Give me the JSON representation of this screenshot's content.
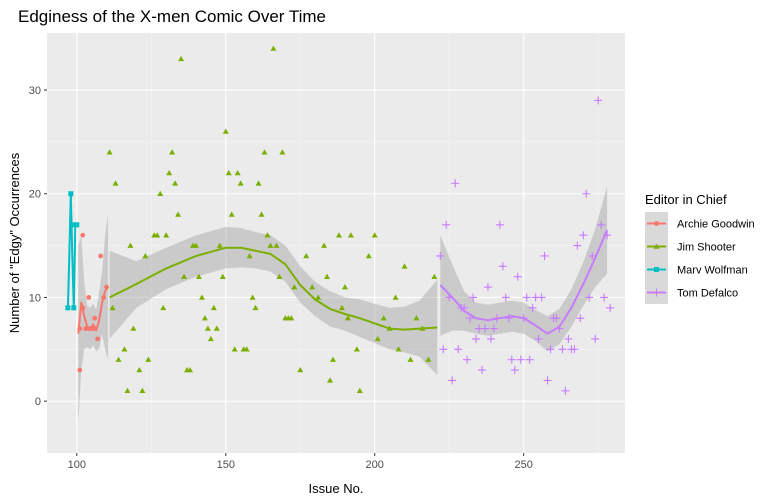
{
  "chart_data": {
    "type": "scatter",
    "title": "Edginess of the X-men Comic Over Time",
    "xlabel": "Issue No.",
    "ylabel": "Number of \"Edgy\" Occurrences",
    "xlim": [
      90,
      284
    ],
    "ylim": [
      -5,
      35.5
    ],
    "x_ticks": [
      100,
      150,
      200,
      250
    ],
    "y_ticks": [
      0,
      10,
      20,
      30
    ],
    "grid": true,
    "legend": {
      "title": "Editor in Chief",
      "position": "right"
    },
    "series": [
      {
        "name": "Archie Goodwin",
        "color": "#F8766D",
        "marker": "circle",
        "points": [
          [
            101,
            3
          ],
          [
            101,
            7
          ],
          [
            102,
            16
          ],
          [
            102,
            9
          ],
          [
            103,
            7
          ],
          [
            104,
            7
          ],
          [
            104,
            10
          ],
          [
            105,
            7
          ],
          [
            106,
            7
          ],
          [
            106,
            8
          ],
          [
            107,
            6
          ],
          [
            108,
            14
          ],
          [
            109,
            10
          ],
          [
            110,
            11
          ]
        ],
        "smooth": [
          [
            100.5,
            6.5
          ],
          [
            101.5,
            9.5
          ],
          [
            102.5,
            8.2
          ],
          [
            103.5,
            7.2
          ],
          [
            104.5,
            7.0
          ],
          [
            105.5,
            7.4
          ],
          [
            106.5,
            6.8
          ],
          [
            107.5,
            7.8
          ],
          [
            108.5,
            9.5
          ],
          [
            109.5,
            10.6
          ],
          [
            110.5,
            11.0
          ]
        ],
        "band": [
          [
            100.5,
            -2,
            15
          ],
          [
            101.5,
            3,
            16
          ],
          [
            102.5,
            5,
            11.5
          ],
          [
            103.5,
            5.2,
            9.2
          ],
          [
            104.5,
            5,
            9
          ],
          [
            105.5,
            5.4,
            9.4
          ],
          [
            106.5,
            4.8,
            8.8
          ],
          [
            107.5,
            5,
            10.5
          ],
          [
            108.5,
            6.5,
            12.5
          ],
          [
            109.5,
            5,
            16
          ],
          [
            110.5,
            4,
            18
          ]
        ]
      },
      {
        "name": "Jim Shooter",
        "color": "#7CAE00",
        "marker": "triangle",
        "points": [
          [
            111,
            24
          ],
          [
            113,
            21
          ],
          [
            112,
            9
          ],
          [
            114,
            4
          ],
          [
            116,
            5
          ],
          [
            117,
            1
          ],
          [
            118,
            15
          ],
          [
            119,
            7
          ],
          [
            121,
            3
          ],
          [
            122,
            1
          ],
          [
            123,
            14
          ],
          [
            124,
            4
          ],
          [
            126,
            16
          ],
          [
            127,
            16
          ],
          [
            128,
            20
          ],
          [
            129,
            9
          ],
          [
            130,
            16
          ],
          [
            131,
            22
          ],
          [
            132,
            24
          ],
          [
            133,
            21
          ],
          [
            134,
            18
          ],
          [
            135,
            33
          ],
          [
            136,
            12
          ],
          [
            137,
            3
          ],
          [
            138,
            3
          ],
          [
            139,
            15
          ],
          [
            140,
            15
          ],
          [
            141,
            12
          ],
          [
            142,
            10
          ],
          [
            143,
            8
          ],
          [
            144,
            7
          ],
          [
            145,
            6
          ],
          [
            146,
            9
          ],
          [
            147,
            7
          ],
          [
            148,
            15
          ],
          [
            149,
            12
          ],
          [
            150,
            26
          ],
          [
            151,
            22
          ],
          [
            152,
            18
          ],
          [
            153,
            5
          ],
          [
            154,
            22
          ],
          [
            155,
            21
          ],
          [
            156,
            5
          ],
          [
            157,
            5
          ],
          [
            158,
            14
          ],
          [
            159,
            10
          ],
          [
            160,
            9
          ],
          [
            161,
            21
          ],
          [
            162,
            18
          ],
          [
            163,
            24
          ],
          [
            164,
            16
          ],
          [
            165,
            15
          ],
          [
            166,
            34
          ],
          [
            167,
            15
          ],
          [
            168,
            12
          ],
          [
            169,
            24
          ],
          [
            170,
            8
          ],
          [
            171,
            8
          ],
          [
            172,
            8
          ],
          [
            173,
            11
          ],
          [
            175,
            3
          ],
          [
            177,
            14
          ],
          [
            179,
            11
          ],
          [
            181,
            10
          ],
          [
            183,
            15
          ],
          [
            184,
            12
          ],
          [
            185,
            2
          ],
          [
            186,
            4
          ],
          [
            188,
            16
          ],
          [
            189,
            9
          ],
          [
            190,
            11
          ],
          [
            191,
            8
          ],
          [
            192,
            16
          ],
          [
            194,
            5
          ],
          [
            195,
            1
          ],
          [
            198,
            14
          ],
          [
            200,
            16
          ],
          [
            201,
            6
          ],
          [
            203,
            8
          ],
          [
            205,
            7
          ],
          [
            207,
            10
          ],
          [
            208,
            5
          ],
          [
            210,
            13
          ],
          [
            212,
            4
          ],
          [
            214,
            8
          ],
          [
            216,
            7
          ],
          [
            218,
            4
          ],
          [
            220,
            12
          ]
        ],
        "smooth": [
          [
            111,
            10.0
          ],
          [
            120,
            11.3
          ],
          [
            130,
            12.8
          ],
          [
            140,
            14.0
          ],
          [
            150,
            14.8
          ],
          [
            155,
            14.8
          ],
          [
            160,
            14.5
          ],
          [
            165,
            14.2
          ],
          [
            170,
            13.2
          ],
          [
            175,
            11.2
          ],
          [
            180,
            9.8
          ],
          [
            185,
            8.9
          ],
          [
            190,
            8.4
          ],
          [
            195,
            8.0
          ],
          [
            200,
            7.5
          ],
          [
            205,
            7.0
          ],
          [
            210,
            6.9
          ],
          [
            215,
            7.0
          ],
          [
            221,
            7.1
          ]
        ],
        "band": [
          [
            111,
            6.0,
            14.5
          ],
          [
            120,
            9.0,
            13.5
          ],
          [
            130,
            10.8,
            14.8
          ],
          [
            140,
            12.0,
            16.0
          ],
          [
            150,
            12.8,
            16.8
          ],
          [
            155,
            12.9,
            16.7
          ],
          [
            160,
            12.8,
            16.3
          ],
          [
            165,
            12.5,
            16.0
          ],
          [
            170,
            11.5,
            15.0
          ],
          [
            175,
            9.5,
            13.0
          ],
          [
            180,
            8.2,
            11.5
          ],
          [
            185,
            7.2,
            10.6
          ],
          [
            190,
            6.8,
            10.0
          ],
          [
            195,
            6.2,
            9.8
          ],
          [
            200,
            5.6,
            9.4
          ],
          [
            205,
            5.0,
            9.0
          ],
          [
            210,
            4.7,
            9.1
          ],
          [
            215,
            4.3,
            9.7
          ],
          [
            221,
            2.5,
            11.7
          ]
        ]
      },
      {
        "name": "Marv Wolfman",
        "color": "#00BFC4",
        "marker": "square",
        "points": [
          [
            97,
            9
          ],
          [
            98,
            20
          ],
          [
            99,
            9
          ],
          [
            99,
            17
          ],
          [
            100,
            17
          ]
        ],
        "smooth": [
          [
            97,
            9
          ],
          [
            97.5,
            14
          ],
          [
            98,
            20
          ],
          [
            98.5,
            14
          ],
          [
            99,
            9
          ],
          [
            99.5,
            17
          ],
          [
            100,
            17
          ]
        ],
        "band": []
      },
      {
        "name": "Tom Defalco",
        "color": "#C77CFF",
        "marker": "plus",
        "points": [
          [
            222,
            14
          ],
          [
            223,
            5
          ],
          [
            224,
            17
          ],
          [
            225,
            10
          ],
          [
            226,
            2
          ],
          [
            227,
            21
          ],
          [
            228,
            5
          ],
          [
            229,
            9
          ],
          [
            230,
            9
          ],
          [
            231,
            4
          ],
          [
            232,
            8
          ],
          [
            233,
            10
          ],
          [
            234,
            6
          ],
          [
            235,
            7
          ],
          [
            236,
            3
          ],
          [
            237,
            7
          ],
          [
            238,
            11
          ],
          [
            239,
            6
          ],
          [
            240,
            7
          ],
          [
            241,
            8
          ],
          [
            242,
            17
          ],
          [
            243,
            13
          ],
          [
            244,
            10
          ],
          [
            245,
            8
          ],
          [
            246,
            4
          ],
          [
            247,
            3
          ],
          [
            248,
            12
          ],
          [
            249,
            4
          ],
          [
            250,
            8
          ],
          [
            251,
            10
          ],
          [
            252,
            4
          ],
          [
            253,
            9
          ],
          [
            254,
            10
          ],
          [
            255,
            6
          ],
          [
            256,
            10
          ],
          [
            257,
            14
          ],
          [
            258,
            2
          ],
          [
            259,
            5
          ],
          [
            260,
            8
          ],
          [
            261,
            8
          ],
          [
            262,
            7
          ],
          [
            263,
            5
          ],
          [
            264,
            1
          ],
          [
            265,
            6
          ],
          [
            266,
            5
          ],
          [
            267,
            5
          ],
          [
            268,
            15
          ],
          [
            269,
            8
          ],
          [
            270,
            16
          ],
          [
            271,
            20
          ],
          [
            272,
            10
          ],
          [
            273,
            14
          ],
          [
            274,
            6
          ],
          [
            275,
            29
          ],
          [
            276,
            17
          ],
          [
            277,
            10
          ],
          [
            278,
            16
          ],
          [
            279,
            9
          ]
        ],
        "smooth": [
          [
            222,
            11.2
          ],
          [
            226,
            10.0
          ],
          [
            230,
            8.7
          ],
          [
            234,
            8.0
          ],
          [
            238,
            7.8
          ],
          [
            242,
            8.0
          ],
          [
            246,
            8.2
          ],
          [
            250,
            8.0
          ],
          [
            254,
            7.3
          ],
          [
            258,
            6.5
          ],
          [
            262,
            7.2
          ],
          [
            266,
            9.0
          ],
          [
            270,
            11.3
          ],
          [
            274,
            13.8
          ],
          [
            278,
            16.5
          ]
        ],
        "band": [
          [
            222,
            6.3,
            16.0
          ],
          [
            226,
            6.8,
            13.2
          ],
          [
            230,
            6.8,
            10.6
          ],
          [
            234,
            6.5,
            9.5
          ],
          [
            238,
            6.3,
            9.3
          ],
          [
            242,
            6.5,
            9.5
          ],
          [
            246,
            6.7,
            9.7
          ],
          [
            250,
            6.5,
            9.5
          ],
          [
            254,
            5.8,
            8.8
          ],
          [
            258,
            4.8,
            8.2
          ],
          [
            262,
            5.5,
            8.9
          ],
          [
            266,
            7.2,
            10.8
          ],
          [
            270,
            9.2,
            13.4
          ],
          [
            274,
            11.0,
            16.6
          ],
          [
            278,
            12.3,
            20.7
          ]
        ]
      }
    ]
  }
}
